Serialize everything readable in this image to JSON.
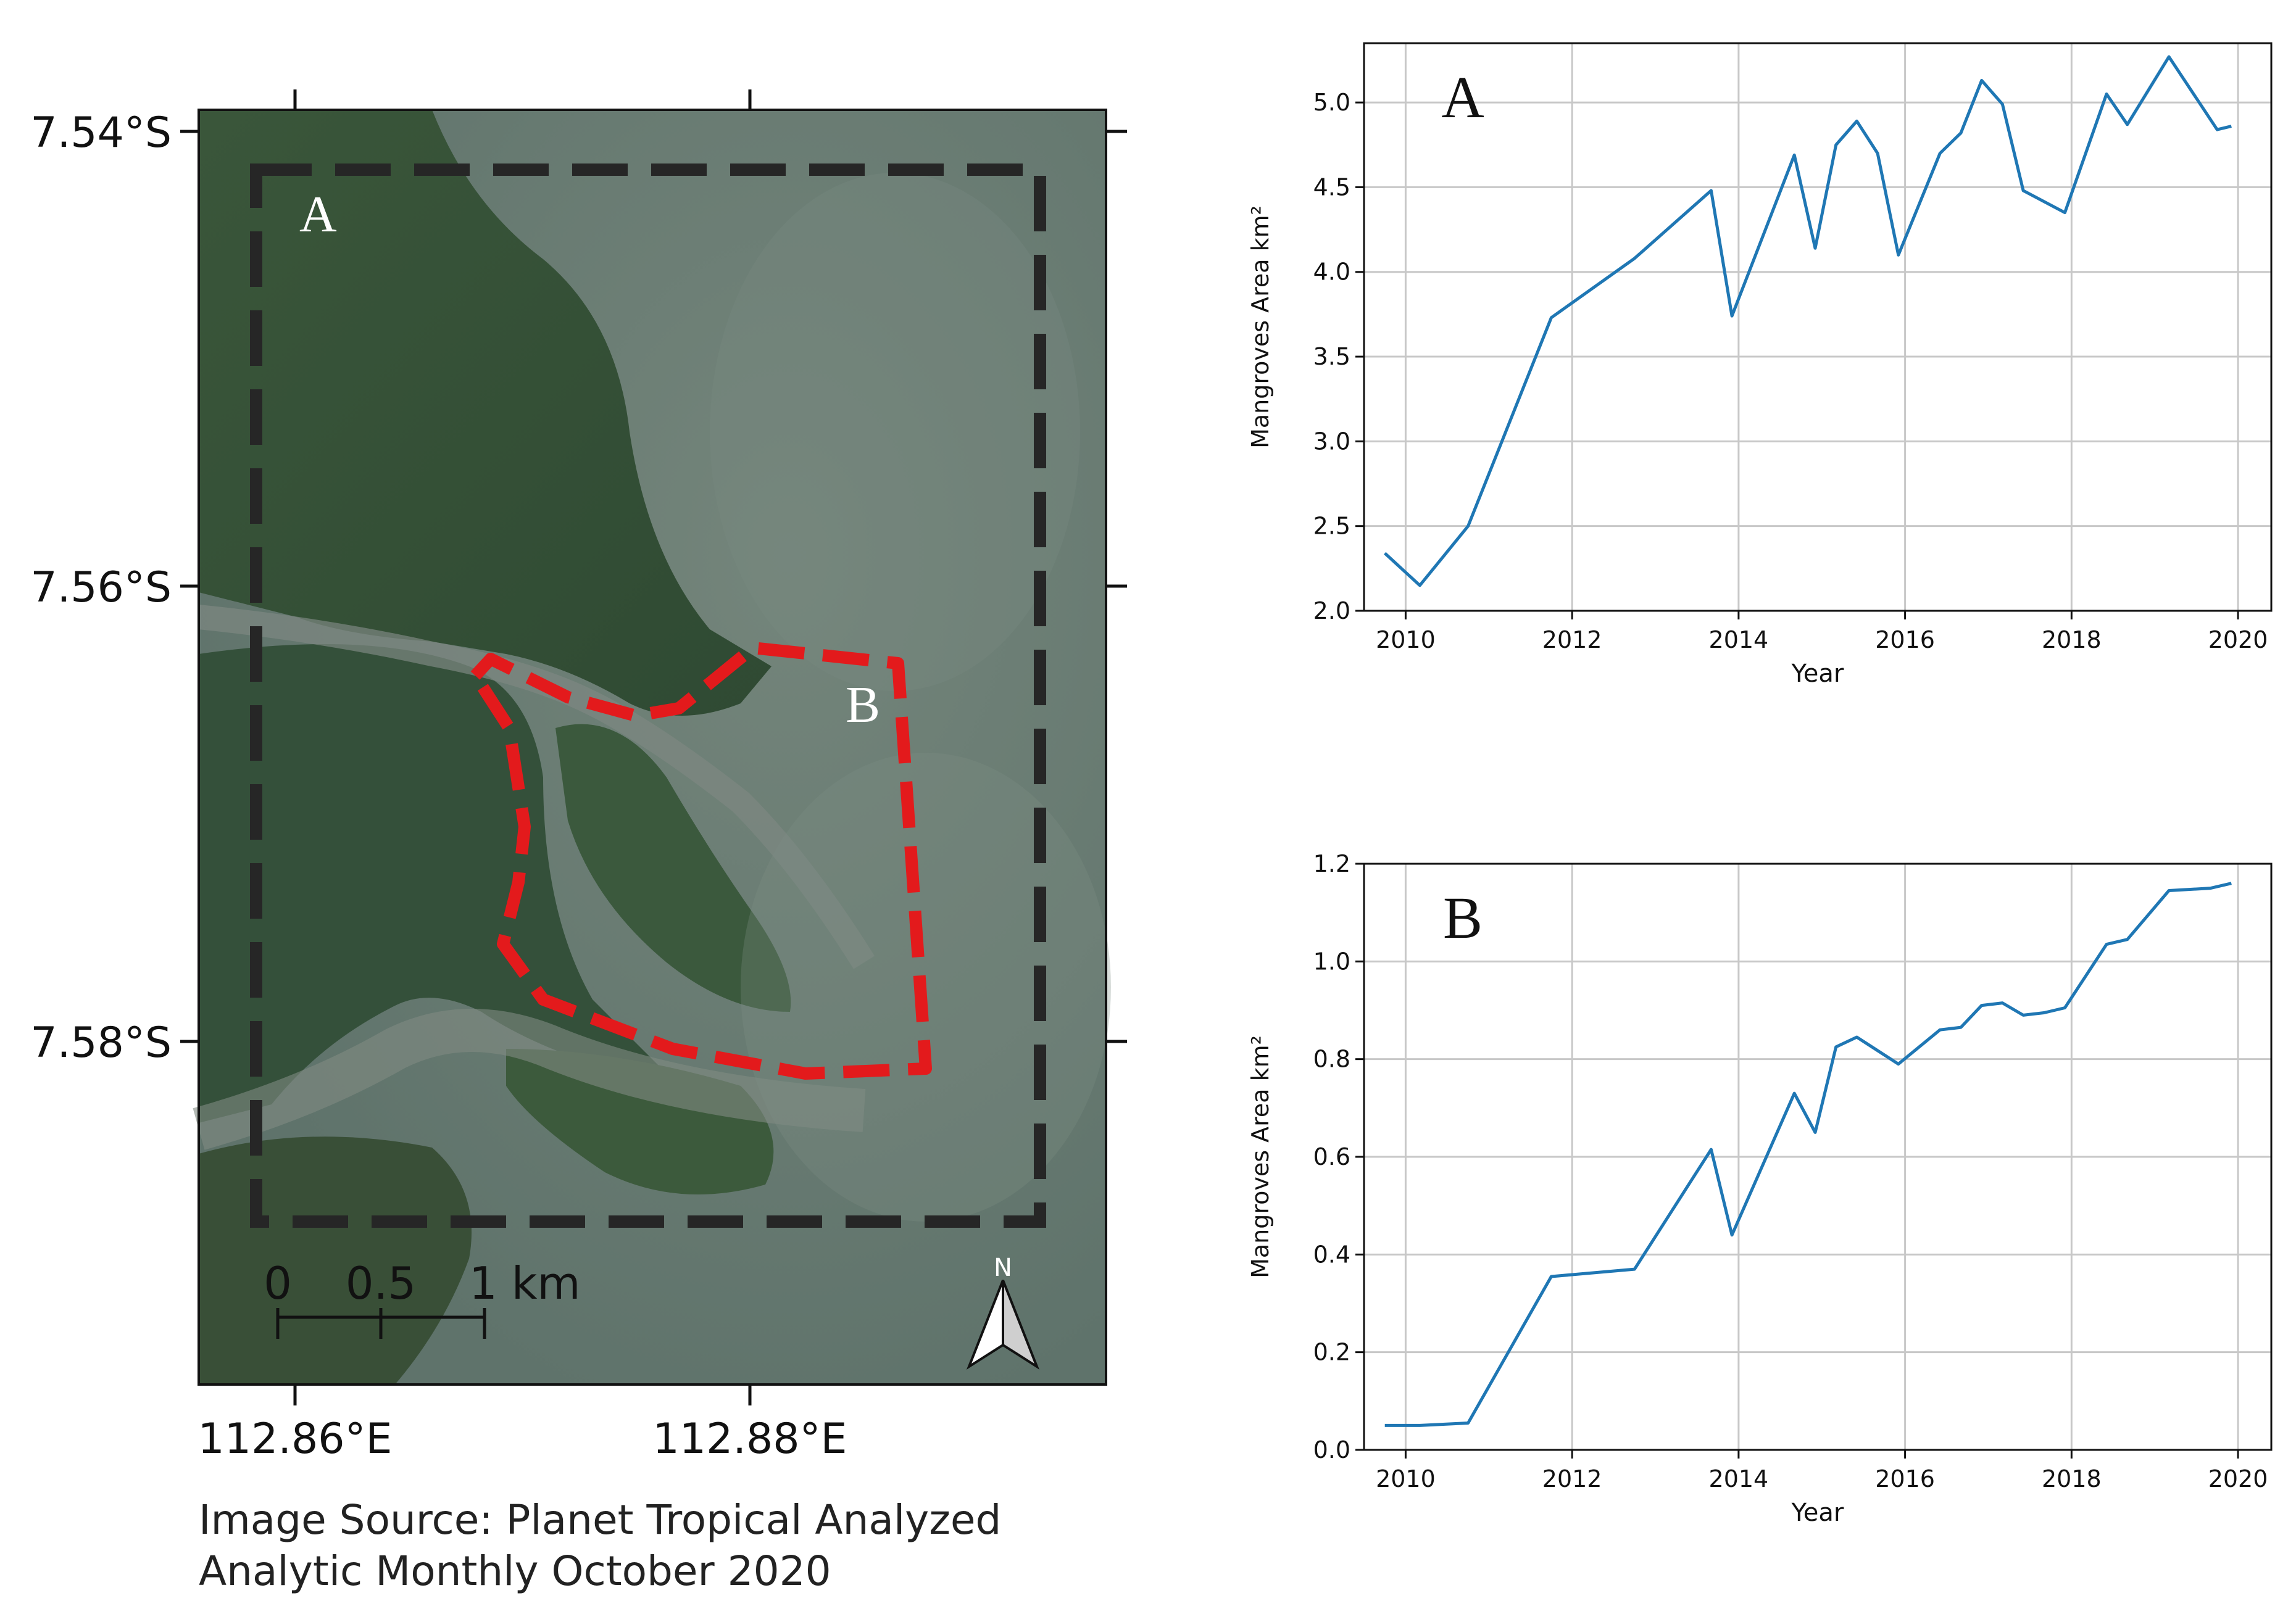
{
  "map": {
    "lat_labels": [
      "7.54°S",
      "7.56°S",
      "7.58°S"
    ],
    "lon_labels": [
      "112.86°E",
      "112.88°E"
    ],
    "area_labels": {
      "a": "A",
      "b": "B"
    },
    "scale_bar": {
      "ticks": [
        "0",
        "0.5",
        "1 km"
      ]
    },
    "north_label": "N",
    "source_line_1": "Image Source: Planet Tropical Analyzed",
    "source_line_2": "Analytic Monthly October 2020",
    "colors": {
      "area_a_outline": "#262626",
      "area_b_outline": "#e31a1c",
      "imagery_land": "#3d5a3d",
      "imagery_water": "#687a72"
    }
  },
  "chart_data": [
    {
      "type": "line",
      "panel_label": "A",
      "xlabel": "Year",
      "ylabel": "Mangroves Area km²",
      "xlim": [
        2009.5,
        2020.4
      ],
      "ylim": [
        2.0,
        5.35
      ],
      "xticks": [
        "2010",
        "2012",
        "2014",
        "2016",
        "2018",
        "2020"
      ],
      "yticks": [
        "2.0",
        "2.5",
        "3.0",
        "3.5",
        "4.0",
        "4.5",
        "5.0"
      ],
      "grid": true,
      "color": "#1f77b4",
      "x": [
        2009.75,
        2010.17,
        2010.75,
        2011.75,
        2012.75,
        2013.67,
        2013.92,
        2014.67,
        2014.92,
        2015.17,
        2015.42,
        2015.67,
        2015.92,
        2016.42,
        2016.67,
        2016.92,
        2017.17,
        2017.42,
        2017.92,
        2018.42,
        2018.67,
        2019.17,
        2019.75,
        2019.92
      ],
      "y": [
        2.34,
        2.15,
        2.5,
        3.73,
        4.08,
        4.48,
        3.74,
        4.69,
        4.14,
        4.75,
        4.89,
        4.7,
        4.1,
        4.7,
        4.82,
        5.13,
        4.99,
        4.48,
        4.35,
        5.05,
        4.87,
        5.27,
        4.84,
        4.86
      ]
    },
    {
      "type": "line",
      "panel_label": "B",
      "xlabel": "Year",
      "ylabel": "Mangroves Area km²",
      "xlim": [
        2009.5,
        2020.4
      ],
      "ylim": [
        0.0,
        1.2
      ],
      "xticks": [
        "2010",
        "2012",
        "2014",
        "2016",
        "2018",
        "2020"
      ],
      "yticks": [
        "0.0",
        "0.2",
        "0.4",
        "0.6",
        "0.8",
        "1.0",
        "1.2"
      ],
      "grid": true,
      "color": "#1f77b4",
      "x": [
        2009.75,
        2010.17,
        2010.75,
        2011.75,
        2012.75,
        2013.67,
        2013.92,
        2014.67,
        2014.92,
        2015.17,
        2015.42,
        2015.92,
        2016.42,
        2016.67,
        2016.92,
        2017.17,
        2017.42,
        2017.67,
        2017.92,
        2018.42,
        2018.67,
        2019.17,
        2019.67,
        2019.92
      ],
      "y": [
        0.05,
        0.05,
        0.055,
        0.355,
        0.37,
        0.615,
        0.44,
        0.73,
        0.65,
        0.825,
        0.845,
        0.79,
        0.86,
        0.865,
        0.91,
        0.915,
        0.89,
        0.895,
        0.905,
        1.035,
        1.045,
        1.145,
        1.15,
        1.16
      ]
    }
  ]
}
